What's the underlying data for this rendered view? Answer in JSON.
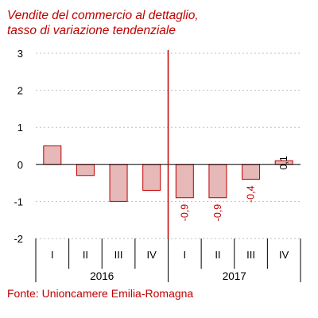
{
  "title_line1": "Vendite del commercio al dettaglio,",
  "title_line2": "tasso di variazione tendenziale",
  "source": "Fonte: Unioncamere Emilia-Romagna",
  "colors": {
    "title": "#c00000",
    "bar_fill": "#e6b8b7",
    "bar_stroke": "#c00000",
    "highlight_line": "#c00000",
    "grid": "#bfbfbf",
    "label_negative": "#c00000",
    "label_positive": "#000000"
  },
  "chart_data": {
    "type": "bar",
    "categories": [
      "I",
      "II",
      "III",
      "IV",
      "I",
      "II",
      "III",
      "IV"
    ],
    "groups": [
      {
        "label": "2016",
        "count": 4
      },
      {
        "label": "2017",
        "count": 4
      }
    ],
    "values": [
      0.5,
      -0.3,
      -1.0,
      -0.7,
      -0.9,
      -0.9,
      -0.4,
      0.1
    ],
    "data_labels": [
      "",
      "",
      "",
      "",
      "-0,9",
      "-0,9",
      "-0,4",
      "0,1"
    ],
    "yticks": [
      3,
      2,
      1,
      0,
      -1,
      -2
    ],
    "ylim": [
      -2,
      3
    ],
    "grid": "horizontal dashed",
    "vertical_marker_between": "2016-IV and 2017-I"
  }
}
